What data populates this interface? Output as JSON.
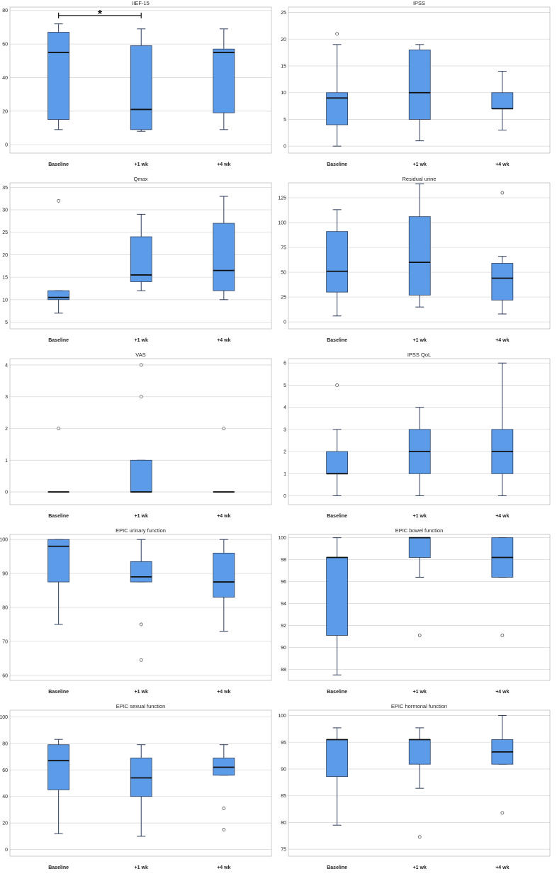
{
  "style": {
    "box_fill": "#5b9be8",
    "box_stroke": "#2e3e5c",
    "grid": "#d9d9d9",
    "frame": "#bfbfbf",
    "text": "#222222",
    "outlier": "#555555"
  },
  "chart_data": [
    {
      "type": "box",
      "title": "IIEF-15",
      "categories": [
        "Baseline",
        "+1 wk",
        "+4 wk"
      ],
      "ylim": [
        -5,
        82
      ],
      "yticks": [
        0,
        20,
        40,
        60,
        80
      ],
      "boxes": [
        {
          "min": 9,
          "q1": 15,
          "median": 55,
          "q3": 67,
          "max": 72,
          "outliers": []
        },
        {
          "min": 8,
          "q1": 9,
          "median": 21,
          "q3": 59,
          "max": 69,
          "outliers": []
        },
        {
          "min": 9,
          "q1": 19,
          "median": 55,
          "q3": 57,
          "max": 69,
          "outliers": []
        }
      ],
      "annotation": {
        "label": "*",
        "from": 0,
        "to": 1,
        "y": 77
      }
    },
    {
      "type": "box",
      "title": "IPSS",
      "categories": [
        "Baseline",
        "+1 wk",
        "+4 wk"
      ],
      "ylim": [
        -1.3,
        26
      ],
      "yticks": [
        0,
        5,
        10,
        15,
        20,
        25
      ],
      "boxes": [
        {
          "min": 0,
          "q1": 4,
          "median": 9,
          "q3": 10,
          "max": 19,
          "outliers": [
            21
          ]
        },
        {
          "min": 1,
          "q1": 5,
          "median": 10,
          "q3": 18,
          "max": 19,
          "outliers": []
        },
        {
          "min": 3,
          "q1": 7,
          "median": 7,
          "q3": 10,
          "max": 14,
          "outliers": []
        }
      ]
    },
    {
      "type": "box",
      "title": "Qmax",
      "categories": [
        "Baseline",
        "+1 wk",
        "+4 wk"
      ],
      "ylim": [
        3.5,
        36
      ],
      "yticks": [
        5,
        10,
        15,
        20,
        25,
        30,
        35
      ],
      "boxes": [
        {
          "min": 7,
          "q1": 10,
          "median": 10.5,
          "q3": 12,
          "max": 12,
          "outliers": [
            32
          ]
        },
        {
          "min": 12,
          "q1": 14,
          "median": 15.5,
          "q3": 24,
          "max": 29,
          "outliers": []
        },
        {
          "min": 10,
          "q1": 12,
          "median": 16.5,
          "q3": 27,
          "max": 33,
          "outliers": []
        }
      ]
    },
    {
      "type": "box",
      "title": "Residual urine",
      "categories": [
        "Baseline",
        "+1 wk",
        "+4 wk"
      ],
      "ylim": [
        -7,
        140
      ],
      "yticks": [
        0,
        25,
        50,
        75,
        100,
        125
      ],
      "boxes": [
        {
          "min": 6,
          "q1": 30,
          "median": 51,
          "q3": 91,
          "max": 113,
          "outliers": []
        },
        {
          "min": 15,
          "q1": 27,
          "median": 60,
          "q3": 106,
          "max": 139,
          "outliers": []
        },
        {
          "min": 8,
          "q1": 22,
          "median": 44,
          "q3": 59,
          "max": 66,
          "outliers": [
            130
          ]
        }
      ]
    },
    {
      "type": "box",
      "title": "VAS",
      "categories": [
        "Baseline",
        "+1 wk",
        "+4 wk"
      ],
      "ylim": [
        -0.4,
        4.2
      ],
      "yticks": [
        0,
        1,
        2,
        3,
        4
      ],
      "boxes": [
        {
          "min": 0,
          "q1": 0,
          "median": 0,
          "q3": 0,
          "max": 0,
          "outliers": [
            2
          ]
        },
        {
          "min": 0,
          "q1": 0,
          "median": 0,
          "q3": 1,
          "max": 1,
          "outliers": [
            3,
            4
          ]
        },
        {
          "min": 0,
          "q1": 0,
          "median": 0,
          "q3": 0,
          "max": 0,
          "outliers": [
            2
          ]
        }
      ]
    },
    {
      "type": "box",
      "title": "IPSS QoL",
      "categories": [
        "Baseline",
        "+1 wk",
        "+4 wk"
      ],
      "ylim": [
        -0.4,
        6.2
      ],
      "yticks": [
        0,
        1,
        2,
        3,
        4,
        5,
        6
      ],
      "boxes": [
        {
          "min": 0,
          "q1": 1,
          "median": 1,
          "q3": 2,
          "max": 3,
          "outliers": [
            5
          ]
        },
        {
          "min": 0,
          "q1": 1,
          "median": 2,
          "q3": 3,
          "max": 4,
          "outliers": []
        },
        {
          "min": 0,
          "q1": 1,
          "median": 2,
          "q3": 3,
          "max": 6,
          "outliers": []
        }
      ]
    },
    {
      "type": "box",
      "title": "EPIC urinary function",
      "categories": [
        "Baseline",
        "+1 wk",
        "+4 wk"
      ],
      "ylim": [
        58.5,
        101.5
      ],
      "yticks": [
        60,
        70,
        80,
        90,
        100
      ],
      "boxes": [
        {
          "min": 75,
          "q1": 87.5,
          "median": 98,
          "q3": 100,
          "max": 100,
          "outliers": []
        },
        {
          "min": 87.5,
          "q1": 87.5,
          "median": 89,
          "q3": 93.5,
          "max": 100,
          "outliers": [
            75,
            64.5
          ]
        },
        {
          "min": 73,
          "q1": 83,
          "median": 87.5,
          "q3": 96,
          "max": 100,
          "outliers": []
        }
      ]
    },
    {
      "type": "box",
      "title": "EPIC bowel function",
      "categories": [
        "Baseline",
        "+1 wk",
        "+4 wk"
      ],
      "ylim": [
        87,
        100.3
      ],
      "yticks": [
        88,
        90,
        92,
        94,
        96,
        98,
        100
      ],
      "boxes": [
        {
          "min": 87.5,
          "q1": 91.1,
          "median": 98.2,
          "q3": 98.2,
          "max": 100,
          "outliers": []
        },
        {
          "min": 96.4,
          "q1": 98.2,
          "median": 100,
          "q3": 100,
          "max": 100,
          "outliers": [
            91.1
          ]
        },
        {
          "min": 96.4,
          "q1": 96.4,
          "median": 98.2,
          "q3": 100,
          "max": 100,
          "outliers": [
            91.1
          ]
        }
      ]
    },
    {
      "type": "box",
      "title": "EPIC sexual function",
      "categories": [
        "Baseline",
        "+1 wk",
        "+4 wk"
      ],
      "ylim": [
        -5,
        105
      ],
      "yticks": [
        0,
        20,
        40,
        60,
        80,
        100
      ],
      "boxes": [
        {
          "min": 12,
          "q1": 45,
          "median": 67,
          "q3": 79,
          "max": 83,
          "outliers": []
        },
        {
          "min": 10,
          "q1": 40,
          "median": 54,
          "q3": 69,
          "max": 79,
          "outliers": []
        },
        {
          "min": 56,
          "q1": 56,
          "median": 62,
          "q3": 69,
          "max": 79,
          "outliers": [
            31,
            15
          ]
        }
      ]
    },
    {
      "type": "box",
      "title": "EPIC hormonal function",
      "categories": [
        "Baseline",
        "+1 wk",
        "+4 wk"
      ],
      "ylim": [
        73.7,
        101
      ],
      "yticks": [
        75,
        80,
        85,
        90,
        95,
        100
      ],
      "boxes": [
        {
          "min": 79.5,
          "q1": 88.6,
          "median": 95.5,
          "q3": 95.5,
          "max": 97.7,
          "outliers": []
        },
        {
          "min": 86.4,
          "q1": 90.9,
          "median": 95.5,
          "q3": 95.5,
          "max": 97.7,
          "outliers": [
            77.3
          ]
        },
        {
          "min": 90.9,
          "q1": 90.9,
          "median": 93.2,
          "q3": 95.5,
          "max": 100,
          "outliers": [
            81.8
          ]
        }
      ]
    }
  ]
}
